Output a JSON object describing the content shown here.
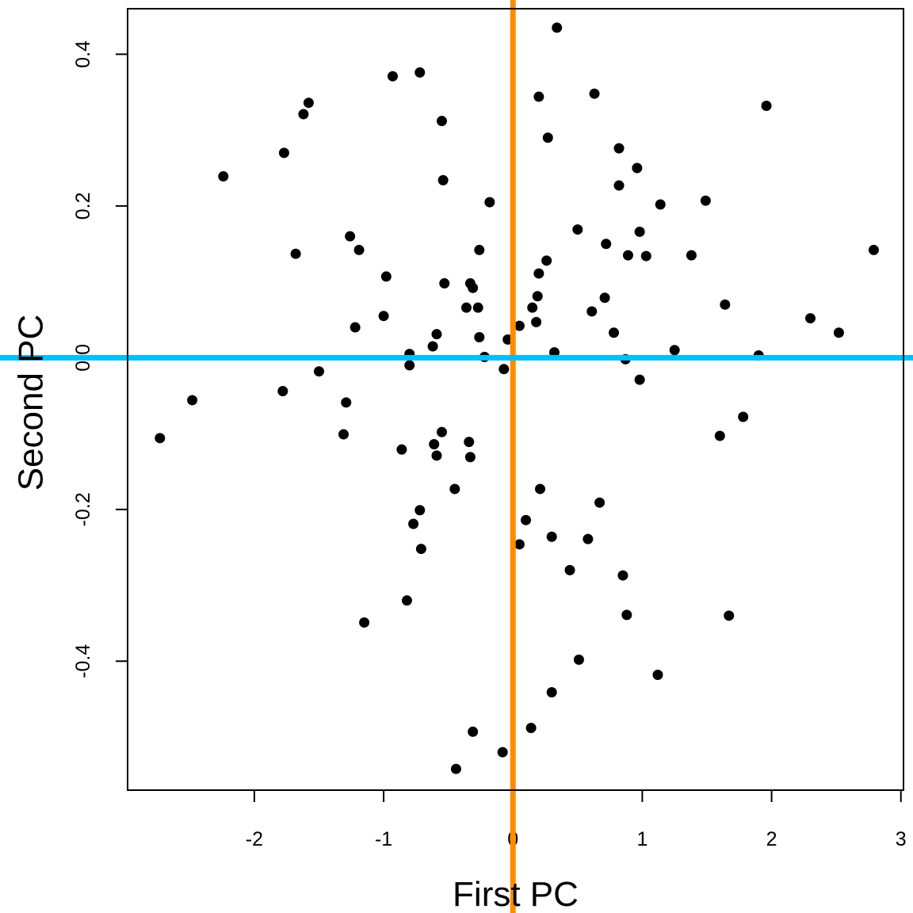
{
  "chart_data": {
    "type": "scatter",
    "title": "",
    "xlabel": "First PC",
    "ylabel": "Second PC",
    "xlim": [
      -2.98,
      3.02
    ],
    "ylim": [
      -0.57,
      0.46
    ],
    "xticks": [
      -2,
      -1,
      0,
      1,
      2,
      3
    ],
    "yticks": [
      -0.4,
      -0.2,
      0.0,
      0.2,
      0.4
    ],
    "ytick_labels": [
      "-0.4",
      "-0.2",
      "0.0",
      "0.2",
      "0.4"
    ],
    "grid": false,
    "reference_lines": [
      {
        "orientation": "vertical",
        "value": 0.0,
        "color": "#ff8c00"
      },
      {
        "orientation": "horizontal",
        "value": 0.0,
        "color": "#00bfff"
      }
    ],
    "marker_color": "#000000",
    "points": [
      {
        "x": -2.73,
        "y": -0.106
      },
      {
        "x": -2.48,
        "y": -0.056
      },
      {
        "x": -2.24,
        "y": 0.239
      },
      {
        "x": -1.77,
        "y": 0.27
      },
      {
        "x": -1.78,
        "y": -0.044
      },
      {
        "x": -1.68,
        "y": 0.137
      },
      {
        "x": -1.62,
        "y": 0.321
      },
      {
        "x": -1.58,
        "y": 0.336
      },
      {
        "x": -1.5,
        "y": -0.018
      },
      {
        "x": -1.31,
        "y": -0.101
      },
      {
        "x": -1.29,
        "y": -0.059
      },
      {
        "x": -1.26,
        "y": 0.16
      },
      {
        "x": -1.22,
        "y": 0.04
      },
      {
        "x": -1.19,
        "y": 0.142
      },
      {
        "x": -1.15,
        "y": -0.349
      },
      {
        "x": -1.0,
        "y": 0.055
      },
      {
        "x": -0.98,
        "y": 0.107
      },
      {
        "x": -0.93,
        "y": 0.371
      },
      {
        "x": -0.86,
        "y": -0.121
      },
      {
        "x": -0.82,
        "y": -0.32
      },
      {
        "x": -0.8,
        "y": 0.005
      },
      {
        "x": -0.8,
        "y": -0.01
      },
      {
        "x": -0.77,
        "y": -0.219
      },
      {
        "x": -0.72,
        "y": -0.201
      },
      {
        "x": -0.71,
        "y": -0.252
      },
      {
        "x": -0.72,
        "y": 0.376
      },
      {
        "x": -0.62,
        "y": 0.015
      },
      {
        "x": -0.61,
        "y": -0.114
      },
      {
        "x": -0.59,
        "y": -0.129
      },
      {
        "x": -0.59,
        "y": 0.031
      },
      {
        "x": -0.55,
        "y": -0.098
      },
      {
        "x": -0.55,
        "y": 0.312
      },
      {
        "x": -0.54,
        "y": 0.234
      },
      {
        "x": -0.53,
        "y": 0.098
      },
      {
        "x": -0.45,
        "y": -0.173
      },
      {
        "x": -0.44,
        "y": -0.542
      },
      {
        "x": -0.36,
        "y": 0.066
      },
      {
        "x": -0.34,
        "y": -0.111
      },
      {
        "x": -0.33,
        "y": -0.131
      },
      {
        "x": -0.33,
        "y": 0.098
      },
      {
        "x": -0.31,
        "y": 0.092
      },
      {
        "x": -0.31,
        "y": -0.493
      },
      {
        "x": -0.27,
        "y": 0.066
      },
      {
        "x": -0.26,
        "y": 0.142
      },
      {
        "x": -0.26,
        "y": 0.027
      },
      {
        "x": -0.22,
        "y": 0.001
      },
      {
        "x": -0.18,
        "y": 0.205
      },
      {
        "x": -0.08,
        "y": -0.52
      },
      {
        "x": -0.07,
        "y": -0.015
      },
      {
        "x": -0.04,
        "y": 0.024
      },
      {
        "x": 0.05,
        "y": -0.246
      },
      {
        "x": 0.05,
        "y": 0.042
      },
      {
        "x": 0.1,
        "y": -0.214
      },
      {
        "x": 0.14,
        "y": -0.488
      },
      {
        "x": 0.15,
        "y": 0.066
      },
      {
        "x": 0.18,
        "y": 0.047
      },
      {
        "x": 0.19,
        "y": 0.081
      },
      {
        "x": 0.2,
        "y": 0.111
      },
      {
        "x": 0.2,
        "y": 0.344
      },
      {
        "x": 0.21,
        "y": -0.173
      },
      {
        "x": 0.26,
        "y": 0.128
      },
      {
        "x": 0.27,
        "y": 0.29
      },
      {
        "x": 0.3,
        "y": -0.236
      },
      {
        "x": 0.3,
        "y": -0.441
      },
      {
        "x": 0.32,
        "y": 0.007
      },
      {
        "x": 0.34,
        "y": 0.435
      },
      {
        "x": 0.44,
        "y": -0.28
      },
      {
        "x": 0.5,
        "y": 0.169
      },
      {
        "x": 0.51,
        "y": -0.398
      },
      {
        "x": 0.58,
        "y": -0.239
      },
      {
        "x": 0.61,
        "y": 0.061
      },
      {
        "x": 0.63,
        "y": 0.348
      },
      {
        "x": 0.67,
        "y": -0.191
      },
      {
        "x": 0.71,
        "y": 0.079
      },
      {
        "x": 0.72,
        "y": 0.15
      },
      {
        "x": 0.78,
        "y": 0.033
      },
      {
        "x": 0.82,
        "y": 0.276
      },
      {
        "x": 0.82,
        "y": 0.227
      },
      {
        "x": 0.85,
        "y": -0.287
      },
      {
        "x": 0.87,
        "y": -0.002
      },
      {
        "x": 0.89,
        "y": 0.135
      },
      {
        "x": 0.88,
        "y": -0.339
      },
      {
        "x": 0.96,
        "y": 0.25
      },
      {
        "x": 0.98,
        "y": 0.166
      },
      {
        "x": 0.98,
        "y": -0.029
      },
      {
        "x": 1.03,
        "y": 0.134
      },
      {
        "x": 1.12,
        "y": -0.418
      },
      {
        "x": 1.14,
        "y": 0.202
      },
      {
        "x": 1.25,
        "y": 0.01
      },
      {
        "x": 1.38,
        "y": 0.135
      },
      {
        "x": 1.49,
        "y": 0.207
      },
      {
        "x": 1.6,
        "y": -0.103
      },
      {
        "x": 1.64,
        "y": 0.07
      },
      {
        "x": 1.67,
        "y": -0.34
      },
      {
        "x": 1.78,
        "y": -0.078
      },
      {
        "x": 1.9,
        "y": 0.003
      },
      {
        "x": 1.96,
        "y": 0.332
      },
      {
        "x": 2.3,
        "y": 0.052
      },
      {
        "x": 2.52,
        "y": 0.033
      },
      {
        "x": 2.79,
        "y": 0.142
      }
    ]
  }
}
